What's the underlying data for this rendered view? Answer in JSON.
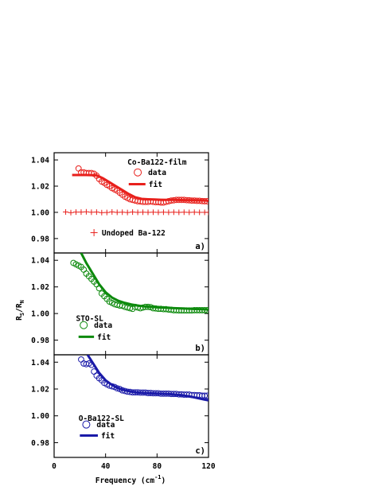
{
  "chart_data": {
    "type": "scatter",
    "xlabel": "Frequency (cm",
    "xlabel_sup": "-1",
    "xlabel_close": ")",
    "ylabel_main": "R",
    "ylabel_sub1": "S",
    "ylabel_slash": "/R",
    "ylabel_sub2": "N",
    "xlim": [
      0,
      120
    ],
    "x_ticks": [
      "0",
      "40",
      "80",
      "120"
    ],
    "y_ticks": [
      "1.04",
      "1.02",
      "1.00",
      "0.98"
    ],
    "panels": [
      {
        "tag": "a)",
        "color": "#e8201c",
        "ylim": [
          0.969,
          1.0455
        ],
        "labels": [
          {
            "text": "Co-Ba122-film",
            "x": 57,
            "y": 1.0385
          },
          {
            "text": "Undoped Ba-122",
            "x": 37,
            "y": 0.9845
          }
        ],
        "legend": {
          "marker_label": "data",
          "line_label": "fit",
          "marker": "circle",
          "cx": 65,
          "cy": 1.0305,
          "lx1": 58,
          "lx2": 71,
          "ly": 1.0215
        },
        "extra_marker": {
          "marker": "plus",
          "x": 31,
          "y": 0.9845
        },
        "series": [
          {
            "name": "data",
            "marker": "circle",
            "x": [
              19,
              21,
              23,
              25,
              27,
              29,
              31,
              33,
              35,
              37,
              39,
              41,
              43,
              45,
              47,
              49,
              51,
              53,
              55,
              57,
              59,
              61,
              63,
              65,
              67,
              69,
              71,
              73,
              75,
              77,
              79,
              81,
              83,
              85,
              87,
              89,
              91,
              93,
              95,
              97,
              99,
              101,
              103,
              105,
              107,
              109,
              111,
              113,
              115,
              117,
              119
            ],
            "y": [
              1.0335,
              1.0305,
              1.0305,
              1.03,
              1.03,
              1.03,
              1.0295,
              1.028,
              1.0255,
              1.0235,
              1.0225,
              1.021,
              1.02,
              1.0185,
              1.0175,
              1.0165,
              1.015,
              1.0135,
              1.012,
              1.011,
              1.01,
              1.0095,
              1.009,
              1.0085,
              1.0083,
              1.008,
              1.008,
              1.008,
              1.0083,
              1.008,
              1.0078,
              1.0078,
              1.0075,
              1.0075,
              1.008,
              1.0085,
              1.009,
              1.0092,
              1.0095,
              1.0095,
              1.0095,
              1.0095,
              1.0093,
              1.0092,
              1.009,
              1.009,
              1.0088,
              1.0088,
              1.0086,
              1.0085,
              1.0085
            ]
          },
          {
            "name": "fit",
            "marker": "line",
            "x": [
              14,
              25,
              33,
              38,
              43,
              48,
              53,
              58,
              63,
              68,
              73,
              78,
              83,
              88,
              93,
              98,
              103,
              108,
              113,
              118,
              120
            ],
            "y": [
              1.0285,
              1.0285,
              1.0283,
              1.026,
              1.023,
              1.02,
              1.017,
              1.014,
              1.0115,
              1.0103,
              1.01,
              1.0098,
              1.0096,
              1.0095,
              1.0095,
              1.0094,
              1.0093,
              1.0092,
              1.0091,
              1.009,
              1.0088
            ]
          },
          {
            "name": "undoped",
            "marker": "plus",
            "x": [
              9,
              13,
              17,
              21,
              25,
              29,
              33,
              37,
              41,
              45,
              49,
              53,
              57,
              61,
              65,
              69,
              73,
              77,
              81,
              85,
              89,
              93,
              97,
              101,
              105,
              109,
              113,
              117,
              120
            ],
            "y": [
              1.0003,
              0.9998,
              1.0002,
              1.0002,
              1.0004,
              1.0001,
              1.0002,
              0.9998,
              0.9999,
              1.0003,
              1.0,
              1.0001,
              0.9999,
              1.0002,
              1.0,
              1.0001,
              1.0,
              1.0001,
              1.0,
              1.0001,
              1.0,
              1.0001,
              1.0,
              1.0001,
              1.0,
              1.0001,
              1.0,
              1.0,
              1.0
            ]
          }
        ]
      },
      {
        "tag": "b)",
        "color": "#0d8a0d",
        "ylim": [
          0.969,
          1.0455
        ],
        "labels": [
          {
            "text": "STO-SL",
            "x": 17,
            "y": 0.9965
          }
        ],
        "legend": {
          "marker_label": "data",
          "line_label": "fit",
          "marker": "circle",
          "cx": 23,
          "cy": 0.9913,
          "lx1": 19,
          "lx2": 31,
          "ly": 0.9825
        },
        "series": [
          {
            "name": "data",
            "marker": "circle",
            "x": [
              15,
              17,
              19,
              21,
              23,
              25,
              27,
              29,
              31,
              33,
              35,
              37,
              39,
              41,
              43,
              45,
              47,
              49,
              51,
              53,
              55,
              57,
              59,
              61,
              63,
              65,
              67,
              69,
              71,
              73,
              75,
              77,
              79,
              81,
              83,
              85,
              87,
              89,
              91,
              93,
              95,
              97,
              99,
              101,
              103,
              105,
              107,
              109,
              111,
              113,
              115,
              117,
              119
            ],
            "y": [
              1.038,
              1.037,
              1.036,
              1.035,
              1.033,
              1.03,
              1.028,
              1.026,
              1.024,
              1.022,
              1.019,
              1.015,
              1.013,
              1.011,
              1.009,
              1.008,
              1.007,
              1.0065,
              1.006,
              1.0058,
              1.005,
              1.0045,
              1.004,
              1.0035,
              1.005,
              1.0045,
              1.004,
              1.0045,
              1.005,
              1.005,
              1.0048,
              1.004,
              1.0038,
              1.0035,
              1.0035,
              1.0033,
              1.0033,
              1.003,
              1.0028,
              1.0025,
              1.0025,
              1.0023,
              1.0023,
              1.0023,
              1.0023,
              1.0023,
              1.0023,
              1.0025,
              1.0025,
              1.0025,
              1.0025,
              1.0025,
              1.0025
            ]
          },
          {
            "name": "fit",
            "marker": "line",
            "x": [
              21,
              25,
              30,
              35,
              40,
              45,
              50,
              55,
              60,
              65,
              70,
              75,
              80,
              85,
              90,
              95,
              100,
              105,
              110,
              115,
              120
            ],
            "y": [
              1.0455,
              1.038,
              1.03,
              1.022,
              1.016,
              1.012,
              1.0095,
              1.008,
              1.0068,
              1.006,
              1.0053,
              1.005,
              1.0046,
              1.0044,
              1.0042,
              1.004,
              1.0038,
              1.0036,
              1.0034,
              1.0032,
              1.003
            ]
          }
        ]
      },
      {
        "tag": "c)",
        "color": "#1a1aa8",
        "ylim": [
          0.969,
          1.0455
        ],
        "labels": [
          {
            "text": "O-Ba122-SL",
            "x": 19,
            "y": 0.9985
          }
        ],
        "legend": {
          "marker_label": "data",
          "line_label": "fit",
          "marker": "circle",
          "cx": 25,
          "cy": 0.9935,
          "lx1": 20,
          "lx2": 34,
          "ly": 0.9853
        },
        "series": [
          {
            "name": "data",
            "marker": "circle",
            "x": [
              21,
              23,
              25,
              27,
              29,
              31,
              33,
              35,
              37,
              39,
              41,
              43,
              45,
              47,
              49,
              51,
              53,
              55,
              57,
              59,
              61,
              63,
              65,
              67,
              69,
              71,
              73,
              75,
              77,
              79,
              81,
              83,
              85,
              87,
              89,
              91,
              93,
              95,
              97,
              99,
              101,
              103,
              105,
              107,
              109,
              111,
              113,
              115,
              117,
              119
            ],
            "y": [
              1.042,
              1.039,
              1.0385,
              1.039,
              1.038,
              1.033,
              1.03,
              1.028,
              1.0265,
              1.0245,
              1.0235,
              1.0225,
              1.022,
              1.0215,
              1.0205,
              1.02,
              1.019,
              1.0185,
              1.018,
              1.0178,
              1.0175,
              1.0175,
              1.0175,
              1.0173,
              1.0173,
              1.0173,
              1.017,
              1.017,
              1.0168,
              1.0168,
              1.0168,
              1.0165,
              1.0165,
              1.0165,
              1.0165,
              1.0163,
              1.0163,
              1.0163,
              1.016,
              1.016,
              1.0158,
              1.0158,
              1.0158,
              1.0155,
              1.0155,
              1.0153,
              1.0153,
              1.015,
              1.015,
              1.015
            ]
          },
          {
            "name": "fit",
            "marker": "line",
            "x": [
              26,
              30,
              35,
              40,
              45,
              50,
              55,
              60,
              65,
              70,
              75,
              80,
              85,
              90,
              95,
              100,
              105,
              110,
              115,
              120
            ],
            "y": [
              1.0455,
              1.0395,
              1.032,
              1.0265,
              1.023,
              1.0205,
              1.019,
              1.018,
              1.0173,
              1.017,
              1.0168,
              1.0166,
              1.0164,
              1.0162,
              1.0158,
              1.0153,
              1.0145,
              1.0135,
              1.0125,
              1.0115
            ]
          }
        ]
      }
    ]
  }
}
